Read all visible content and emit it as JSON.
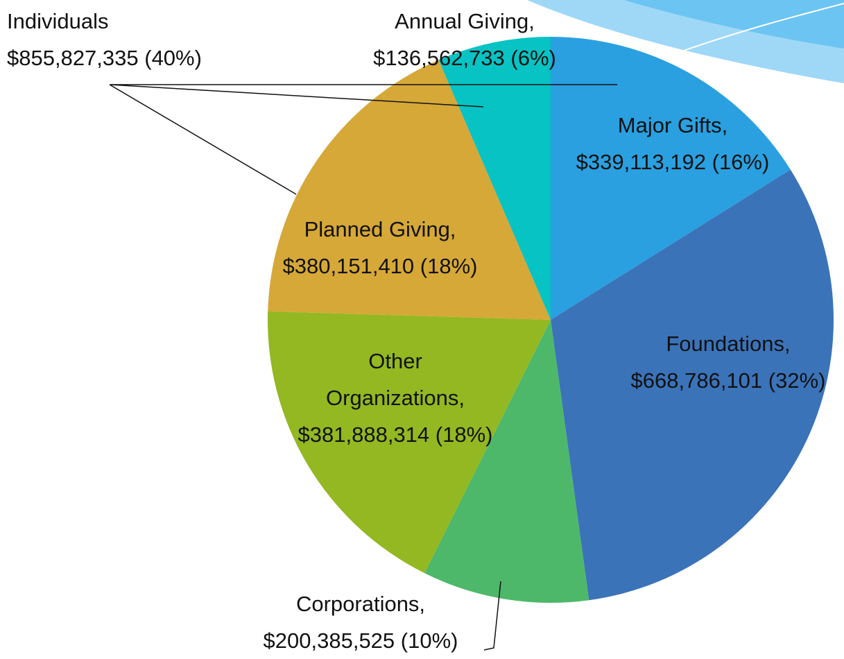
{
  "chart_data": {
    "type": "pie",
    "categories": [
      "Major Gifts,",
      "Foundations,",
      "Corporations,",
      "Other Organizations,",
      "Planned Giving,",
      "Annual Giving,"
    ],
    "values": [
      339113192,
      668786101,
      200385525,
      381888314,
      380151410,
      136562733
    ],
    "value_labels": [
      "$339,113,192 (16%)",
      "$668,786,101 (32%)",
      "$200,385,525 (10%)",
      "$381,888,314 (18%)",
      "$380,151,410 (18%)",
      "$136,562,733 (6%)"
    ],
    "colors": [
      "#2aa0e0",
      "#3b73b9",
      "#4db86a",
      "#93b822",
      "#d6a838",
      "#07c3c3"
    ],
    "annotations": [
      {
        "title": "Individuals",
        "text": "$855,827,335 (40%)"
      }
    ]
  }
}
